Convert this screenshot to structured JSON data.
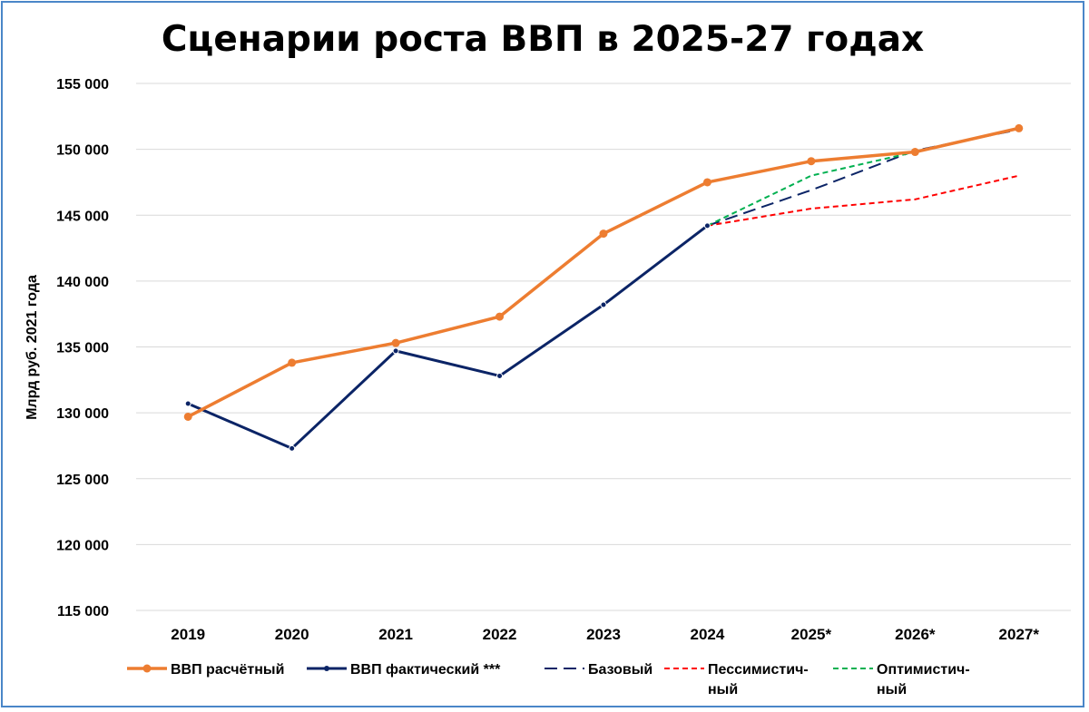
{
  "chart_data": {
    "type": "line",
    "title": "Сценарии роста ВВП в 2025-27 годах",
    "xlabel": "",
    "ylabel": "Млрд руб. 2021 года",
    "categories": [
      "2019",
      "2020",
      "2021",
      "2022",
      "2023",
      "2024",
      "2025*",
      "2026*",
      "2027*"
    ],
    "ylim": [
      115000,
      155000
    ],
    "yticks": [
      115000,
      120000,
      125000,
      130000,
      135000,
      140000,
      145000,
      150000,
      155000
    ],
    "ytick_labels": [
      "115 000",
      "120 000",
      "125 000",
      "130 000",
      "135 000",
      "140 000",
      "145 000",
      "150 000",
      "155 000"
    ],
    "grid": "horizontal",
    "legend_position": "bottom",
    "series": [
      {
        "name": "ВВП расчётный",
        "color": "#ed7d31",
        "style": "solid-marker-large",
        "values": [
          129700,
          133800,
          135300,
          137300,
          143600,
          147500,
          149100,
          149800,
          151600
        ]
      },
      {
        "name": "ВВП фактический ***",
        "color": "#0b2466",
        "style": "solid-marker-small",
        "values": [
          130700,
          127300,
          134700,
          132800,
          138200,
          144200,
          null,
          null,
          null
        ]
      },
      {
        "name": "Базовый",
        "color": "#0b2466",
        "style": "dashed-long",
        "values": [
          null,
          null,
          null,
          null,
          null,
          144200,
          146900,
          149900,
          151500
        ]
      },
      {
        "name": "Пессимистич-ный",
        "color": "#ff0000",
        "style": "dashed-short",
        "values": [
          null,
          null,
          null,
          null,
          null,
          144200,
          145500,
          146200,
          148000
        ]
      },
      {
        "name": "Оптимистич-ный",
        "color": "#00b050",
        "style": "dashed-short",
        "values": [
          null,
          null,
          null,
          null,
          null,
          144200,
          148000,
          149800,
          151600
        ]
      }
    ],
    "legend": [
      {
        "lines": [
          "ВВП расчётный"
        ]
      },
      {
        "lines": [
          "ВВП фактический ***"
        ]
      },
      {
        "lines": [
          "Базовый"
        ]
      },
      {
        "lines": [
          "Пессимистич-",
          "ный"
        ]
      },
      {
        "lines": [
          "Оптимистич-",
          "ный"
        ]
      }
    ]
  }
}
